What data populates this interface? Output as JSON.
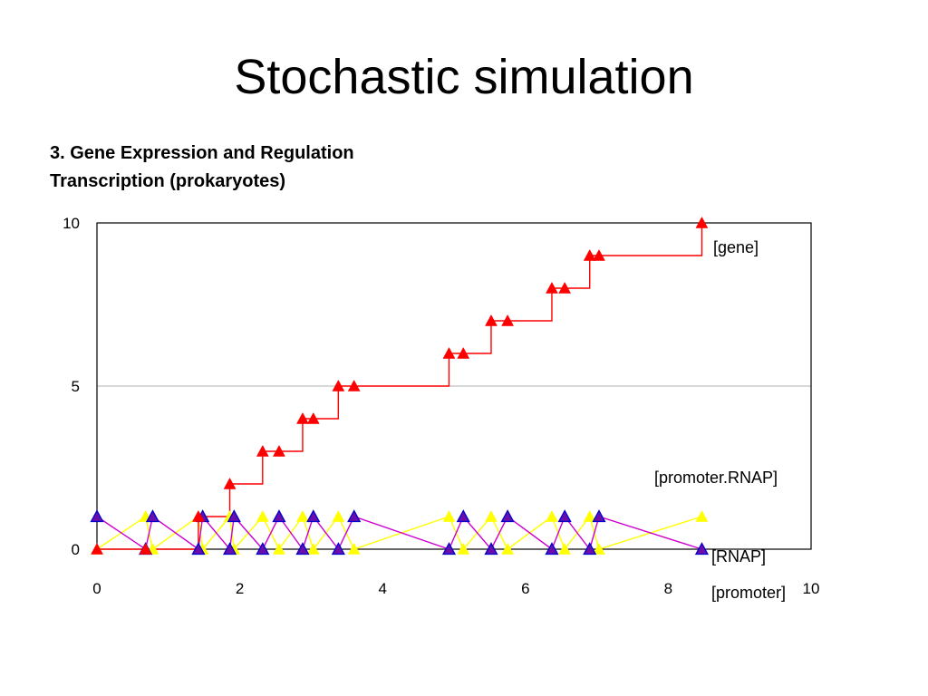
{
  "slide": {
    "title": "Stochastic simulation",
    "subtitle_line1": "3. Gene Expression and Regulation",
    "subtitle_line2": "Transcription (prokaryotes)"
  },
  "chart_data": {
    "type": "line",
    "xlim": [
      0,
      10
    ],
    "ylim": [
      0,
      10
    ],
    "x_ticks": [
      "0",
      "2",
      "4",
      "6",
      "8",
      "10"
    ],
    "y_ticks": [
      "0",
      "5",
      "10"
    ],
    "grid": "horizontal at 5",
    "series": [
      {
        "name": "[gene]",
        "color": "#ff0000",
        "marker_color": "#ff0000",
        "step": true,
        "x": [
          0,
          0.68,
          1.42,
          1.86,
          2.32,
          2.55,
          2.88,
          3.03,
          3.38,
          3.6,
          4.93,
          5.13,
          5.52,
          5.75,
          6.37,
          6.55,
          6.9,
          7.03,
          8.47
        ],
        "y": [
          0,
          0,
          1,
          2,
          3,
          3,
          4,
          4,
          5,
          5,
          6,
          6,
          7,
          7,
          8,
          8,
          9,
          9,
          10
        ]
      },
      {
        "name": "[promoter.RNAP]",
        "color": "#ffff00",
        "marker_color": "#ffff00",
        "x": [
          0,
          0.68,
          0.78,
          1.42,
          1.48,
          1.86,
          1.92,
          2.32,
          2.55,
          2.88,
          3.03,
          3.38,
          3.6,
          4.93,
          5.13,
          5.52,
          5.75,
          6.37,
          6.55,
          6.9,
          7.03,
          8.47
        ],
        "y": [
          0,
          1,
          0,
          1,
          0,
          1,
          0,
          1,
          0,
          1,
          0,
          1,
          0,
          1,
          0,
          1,
          0,
          1,
          0,
          1,
          0,
          1
        ]
      },
      {
        "name": "[RNAP]",
        "color": "#cc00cc",
        "marker_color": "#6a0dad",
        "marker_edge": "#0000cc",
        "x": [
          0,
          0.68,
          0.78,
          1.42,
          1.48,
          1.86,
          1.92,
          2.32,
          2.55,
          2.88,
          3.03,
          3.38,
          3.6,
          4.93,
          5.13,
          5.52,
          5.75,
          6.37,
          6.55,
          6.9,
          7.03,
          8.47
        ],
        "y": [
          1,
          0,
          1,
          0,
          1,
          0,
          1,
          0,
          1,
          0,
          1,
          0,
          1,
          0,
          1,
          0,
          1,
          0,
          1,
          0,
          1,
          0
        ]
      }
    ],
    "labels": {
      "gene": "[gene]",
      "promoter_rnap": "[promoter.RNAP]",
      "rnap": "[RNAP]",
      "promoter": "[promoter]"
    }
  }
}
